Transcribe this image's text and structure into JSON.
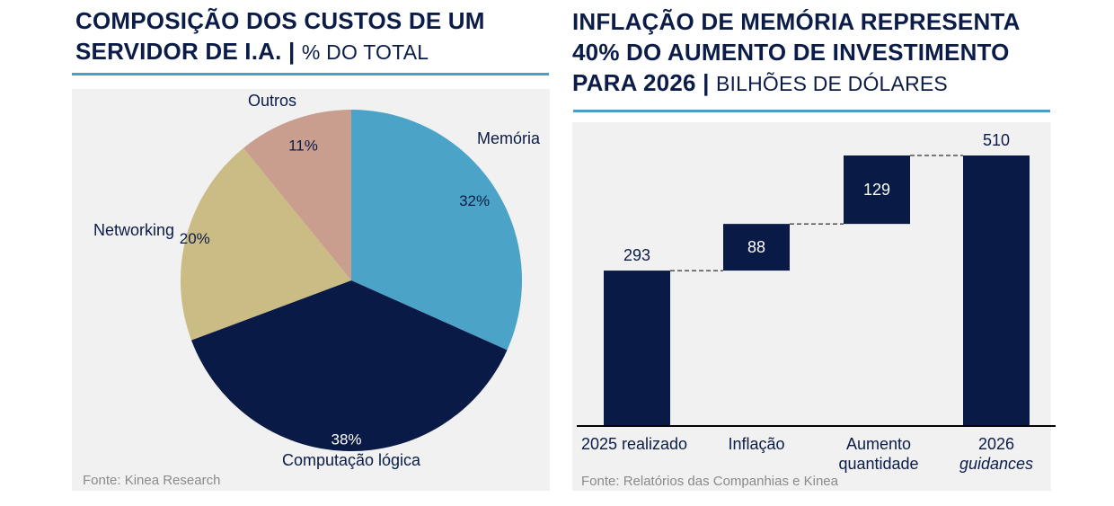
{
  "left": {
    "title_bold_line1": "COMPOSIÇÃO DOS CUSTOS DE UM",
    "title_bold_line2": "SERVIDOR DE I.A.",
    "title_separator": "|",
    "title_unit": "% DO TOTAL",
    "source": "Fonte: Kinea Research"
  },
  "right": {
    "title_bold_line1": "INFLAÇÃO DE MEMÓRIA REPRESENTA",
    "title_bold_line2": "40% DO AUMENTO DE INVESTIMENTO",
    "title_bold_line3": "PARA 2026",
    "title_separator": "|",
    "title_unit": "BILHÕES DE DÓLARES",
    "source": "Fonte: Relatórios das Companhias e Kinea"
  },
  "colors": {
    "navy": "#081a45",
    "blue": "#4ba3c7",
    "tan": "#cbbb84",
    "pink": "#c99e8f",
    "accent_rule": "#4a9ec3"
  },
  "chart_data": [
    {
      "type": "pie",
      "title": "COMPOSIÇÃO DOS CUSTOS DE UM SERVIDOR DE I.A. | % DO TOTAL",
      "slices": [
        {
          "label": "Memória",
          "value": 32,
          "value_label": "32%",
          "color": "#4ba3c7"
        },
        {
          "label": "Computação lógica",
          "value": 38,
          "value_label": "38%",
          "color": "#081a45"
        },
        {
          "label": "Networking",
          "value": 20,
          "value_label": "20%",
          "color": "#cbbb84"
        },
        {
          "label": "Outros",
          "value": 11,
          "value_label": "11%",
          "color": "#c99e8f"
        }
      ],
      "start": "12 o'clock, clockwise"
    },
    {
      "type": "bar",
      "subtype": "waterfall",
      "title": "INFLAÇÃO DE MEMÓRIA REPRESENTA 40% DO AUMENTO DE INVESTIMENTO PARA 2026 | BILHÕES DE DÓLARES",
      "categories": [
        {
          "line1": "2025 realizado",
          "line2": ""
        },
        {
          "line1": "Inflação",
          "line2": ""
        },
        {
          "line1": "Aumento",
          "line2": "quantidade"
        },
        {
          "line1": "2026",
          "line2": "guidances",
          "line2_italic": true
        }
      ],
      "values": [
        293,
        88,
        129,
        510
      ],
      "kinds": [
        "total",
        "delta",
        "delta",
        "total"
      ],
      "value_labels": [
        "293",
        "88",
        "129",
        "510"
      ],
      "ylim": [
        0,
        510
      ],
      "grid": false,
      "connectors": "dashed"
    }
  ]
}
